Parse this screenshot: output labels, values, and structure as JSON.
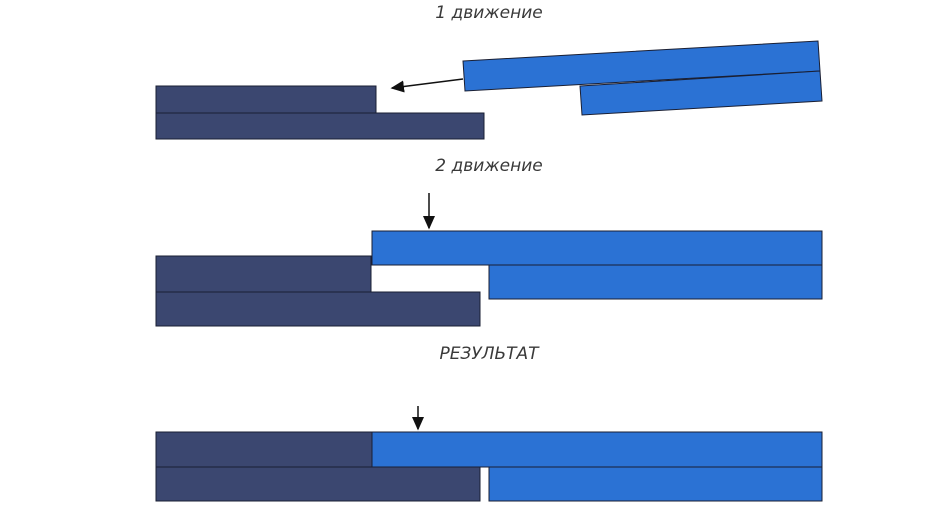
{
  "steps": {
    "step1_label": "1 движение",
    "step2_label": "2 движение",
    "result_label": "РЕЗУЛЬТАТ"
  },
  "colors": {
    "dark_board": "#3b4770",
    "light_board": "#2b72d4",
    "board_stroke": "#1a1f33",
    "arrow": "#111111"
  }
}
